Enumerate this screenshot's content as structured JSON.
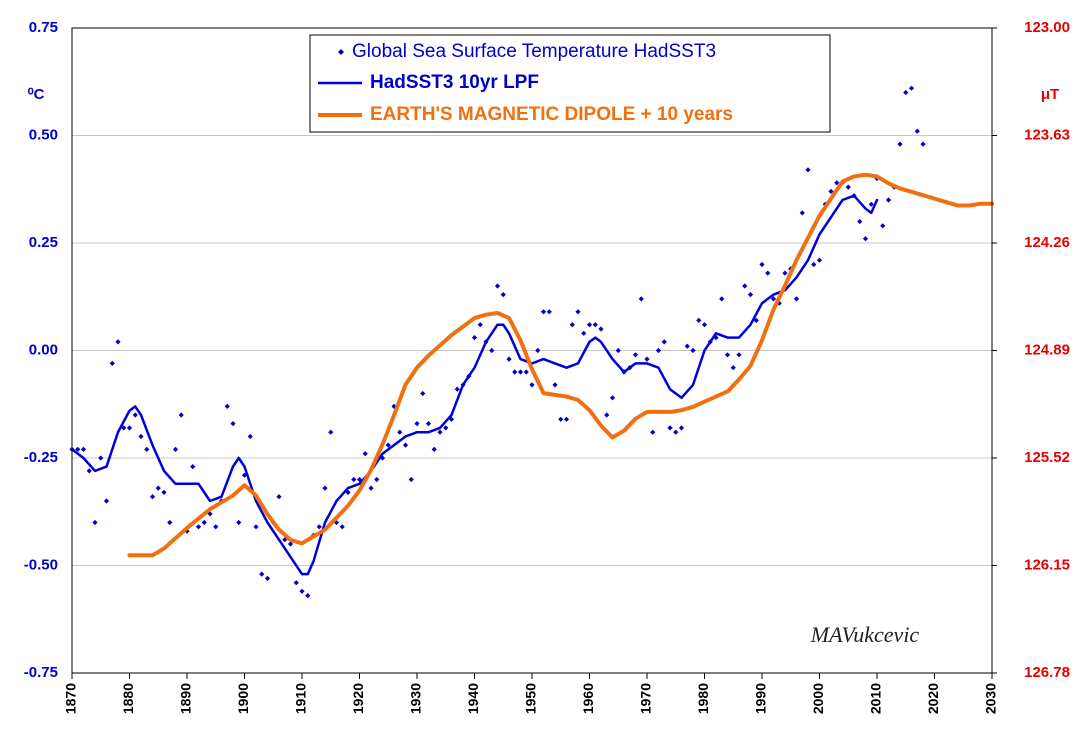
{
  "chart_data": {
    "type": "line",
    "y_label": "⁰C",
    "y2_label": "μT",
    "annotation": "MAVukcevic",
    "xlim": [
      1870,
      2030
    ],
    "xticks": [
      1870,
      1880,
      1890,
      1900,
      1910,
      1920,
      1930,
      1940,
      1950,
      1960,
      1970,
      1980,
      1990,
      2000,
      2010,
      2020,
      2030
    ],
    "ylim": [
      -0.75,
      0.75
    ],
    "yticks": [
      {
        "value": -0.75,
        "label": "-0.75"
      },
      {
        "value": -0.5,
        "label": "-0.50"
      },
      {
        "value": -0.25,
        "label": "-0.25"
      },
      {
        "value": 0,
        "label": "0.00"
      },
      {
        "value": 0.25,
        "label": "0.25"
      },
      {
        "value": 0.5,
        "label": "0.50"
      },
      {
        "value": 0.75,
        "label": "0.75"
      }
    ],
    "y2lim": [
      126.78,
      123.0
    ],
    "y2ticks": [
      {
        "value": 123,
        "label": "123.00"
      },
      123.63,
      124.26,
      124.89,
      125.52,
      126.15,
      126.78
    ],
    "grid": true,
    "series": [
      {
        "name": "Global Sea Surface Temperature HadSST3",
        "color": "#0000cc",
        "mode": "markers",
        "x": [
          1870,
          1871,
          1872,
          1873,
          1874,
          1875,
          1876,
          1877,
          1878,
          1879,
          1880,
          1881,
          1882,
          1883,
          1884,
          1885,
          1886,
          1887,
          1888,
          1889,
          1890,
          1891,
          1892,
          1893,
          1894,
          1895,
          1896,
          1897,
          1898,
          1899,
          1900,
          1901,
          1902,
          1903,
          1904,
          1905,
          1906,
          1907,
          1908,
          1909,
          1910,
          1911,
          1912,
          1913,
          1914,
          1915,
          1916,
          1917,
          1918,
          1919,
          1920,
          1921,
          1922,
          1923,
          1924,
          1925,
          1926,
          1927,
          1928,
          1929,
          1930,
          1931,
          1932,
          1933,
          1934,
          1935,
          1936,
          1937,
          1938,
          1939,
          1940,
          1941,
          1942,
          1943,
          1944,
          1945,
          1946,
          1947,
          1948,
          1949,
          1950,
          1951,
          1952,
          1953,
          1954,
          1955,
          1956,
          1957,
          1958,
          1959,
          1960,
          1961,
          1962,
          1963,
          1964,
          1965,
          1966,
          1967,
          1968,
          1969,
          1970,
          1971,
          1972,
          1973,
          1974,
          1975,
          1976,
          1977,
          1978,
          1979,
          1980,
          1981,
          1982,
          1983,
          1984,
          1985,
          1986,
          1987,
          1988,
          1989,
          1990,
          1991,
          1992,
          1993,
          1994,
          1995,
          1996,
          1997,
          1998,
          1999,
          2000,
          2001,
          2002,
          2003,
          2004,
          2005,
          2006,
          2007,
          2008,
          2009,
          2010,
          2011,
          2012,
          2013,
          2014,
          2015,
          2016,
          2017,
          2018
        ],
        "values": [
          -0.23,
          -0.23,
          -0.23,
          -0.28,
          -0.4,
          -0.25,
          -0.35,
          -0.03,
          0.02,
          -0.18,
          -0.18,
          -0.15,
          -0.2,
          -0.23,
          -0.34,
          -0.32,
          -0.33,
          -0.4,
          -0.23,
          -0.15,
          -0.42,
          -0.27,
          -0.41,
          -0.4,
          -0.38,
          -0.41,
          -0.35,
          -0.13,
          -0.17,
          -0.4,
          -0.29,
          -0.2,
          -0.41,
          -0.52,
          -0.53,
          -0.4,
          -0.34,
          -0.44,
          -0.45,
          -0.54,
          -0.56,
          -0.57,
          -0.43,
          -0.41,
          -0.32,
          -0.19,
          -0.4,
          -0.41,
          -0.33,
          -0.3,
          -0.3,
          -0.24,
          -0.32,
          -0.3,
          -0.25,
          -0.22,
          -0.13,
          -0.19,
          -0.22,
          -0.3,
          -0.17,
          -0.1,
          -0.17,
          -0.23,
          -0.19,
          -0.18,
          -0.16,
          -0.09,
          -0.08,
          -0.06,
          0.03,
          0.06,
          0.02,
          0.0,
          0.15,
          0.13,
          -0.02,
          -0.05,
          -0.05,
          -0.05,
          -0.08,
          0.0,
          0.09,
          0.09,
          -0.08,
          -0.16,
          -0.16,
          0.06,
          0.09,
          0.04,
          0.06,
          0.06,
          0.05,
          -0.15,
          -0.11,
          0.0,
          -0.05,
          -0.04,
          -0.01,
          0.12,
          -0.02,
          -0.19,
          0.0,
          0.02,
          -0.18,
          -0.19,
          -0.18,
          0.01,
          0.0,
          0.07,
          0.06,
          0.02,
          0.03,
          0.12,
          -0.01,
          -0.04,
          -0.01,
          0.15,
          0.13,
          0.07,
          0.2,
          0.18,
          0.12,
          0.11,
          0.18,
          0.19,
          0.12,
          0.32,
          0.42,
          0.2,
          0.21,
          0.34,
          0.37,
          0.39,
          0.39,
          0.38,
          0.36,
          0.3,
          0.26,
          0.34,
          0.4,
          0.29,
          0.35,
          0.38,
          0.48,
          0.6,
          0.61,
          0.51,
          0.48
        ]
      },
      {
        "name": "HadSST3 10yr LPF",
        "color": "#0000dd",
        "mode": "line",
        "x": [
          1870,
          1872,
          1874,
          1876,
          1878,
          1880,
          1881,
          1882,
          1884,
          1886,
          1888,
          1890,
          1892,
          1894,
          1896,
          1898,
          1899,
          1900,
          1902,
          1904,
          1906,
          1908,
          1910,
          1911,
          1912,
          1914,
          1916,
          1918,
          1920,
          1922,
          1924,
          1926,
          1928,
          1930,
          1932,
          1934,
          1936,
          1938,
          1940,
          1942,
          1944,
          1945,
          1946,
          1948,
          1950,
          1952,
          1954,
          1956,
          1958,
          1960,
          1961,
          1962,
          1964,
          1966,
          1968,
          1970,
          1972,
          1974,
          1976,
          1978,
          1980,
          1982,
          1984,
          1986,
          1988,
          1990,
          1992,
          1994,
          1996,
          1998,
          2000,
          2002,
          2004,
          2006,
          2008,
          2009,
          2010
        ],
        "values": [
          -0.23,
          -0.25,
          -0.28,
          -0.27,
          -0.19,
          -0.14,
          -0.13,
          -0.15,
          -0.22,
          -0.28,
          -0.31,
          -0.31,
          -0.31,
          -0.35,
          -0.34,
          -0.27,
          -0.25,
          -0.27,
          -0.35,
          -0.4,
          -0.44,
          -0.48,
          -0.52,
          -0.52,
          -0.49,
          -0.4,
          -0.35,
          -0.32,
          -0.31,
          -0.28,
          -0.24,
          -0.22,
          -0.2,
          -0.19,
          -0.19,
          -0.18,
          -0.15,
          -0.08,
          -0.04,
          0.02,
          0.06,
          0.06,
          0.04,
          -0.02,
          -0.03,
          -0.02,
          -0.03,
          -0.04,
          -0.03,
          0.02,
          0.03,
          0.02,
          -0.02,
          -0.05,
          -0.03,
          -0.03,
          -0.04,
          -0.09,
          -0.11,
          -0.08,
          0.0,
          0.04,
          0.03,
          0.03,
          0.06,
          0.11,
          0.13,
          0.14,
          0.17,
          0.21,
          0.27,
          0.31,
          0.35,
          0.36,
          0.33,
          0.32,
          0.35
        ]
      },
      {
        "name": "EARTH'S MAGNETIC DIPOLE + 10 years",
        "color": "#f07010",
        "mode": "line",
        "axis": "y2",
        "x": [
          1880,
          1884,
          1886,
          1890,
          1894,
          1898,
          1900,
          1902,
          1904,
          1906,
          1908,
          1910,
          1912,
          1914,
          1916,
          1918,
          1920,
          1922,
          1924,
          1926,
          1928,
          1930,
          1932,
          1934,
          1936,
          1938,
          1940,
          1942,
          1944,
          1946,
          1948,
          1950,
          1952,
          1954,
          1956,
          1958,
          1960,
          1962,
          1964,
          1966,
          1968,
          1970,
          1972,
          1974,
          1976,
          1978,
          1980,
          1982,
          1984,
          1986,
          1988,
          1990,
          1992,
          1994,
          1996,
          1998,
          2000,
          2002,
          2004,
          2006,
          2008,
          2010,
          2012,
          2014,
          2016,
          2018,
          2020,
          2022,
          2024,
          2026,
          2028,
          2030
        ],
        "values": [
          126.09,
          126.09,
          126.05,
          125.93,
          125.82,
          125.74,
          125.68,
          125.74,
          125.85,
          125.94,
          126.0,
          126.02,
          125.98,
          125.94,
          125.87,
          125.8,
          125.71,
          125.59,
          125.44,
          125.27,
          125.09,
          124.99,
          124.92,
          124.86,
          124.8,
          124.75,
          124.7,
          124.68,
          124.67,
          124.7,
          124.83,
          125.0,
          125.14,
          125.15,
          125.16,
          125.18,
          125.24,
          125.33,
          125.4,
          125.36,
          125.29,
          125.25,
          125.25,
          125.25,
          125.24,
          125.22,
          125.19,
          125.16,
          125.13,
          125.06,
          124.98,
          124.83,
          124.65,
          124.51,
          124.36,
          124.23,
          124.1,
          124.0,
          123.9,
          123.87,
          123.86,
          123.87,
          123.91,
          123.94,
          123.96,
          123.98,
          124.0,
          124.02,
          124.04,
          124.04,
          124.03,
          124.03
        ]
      }
    ]
  }
}
